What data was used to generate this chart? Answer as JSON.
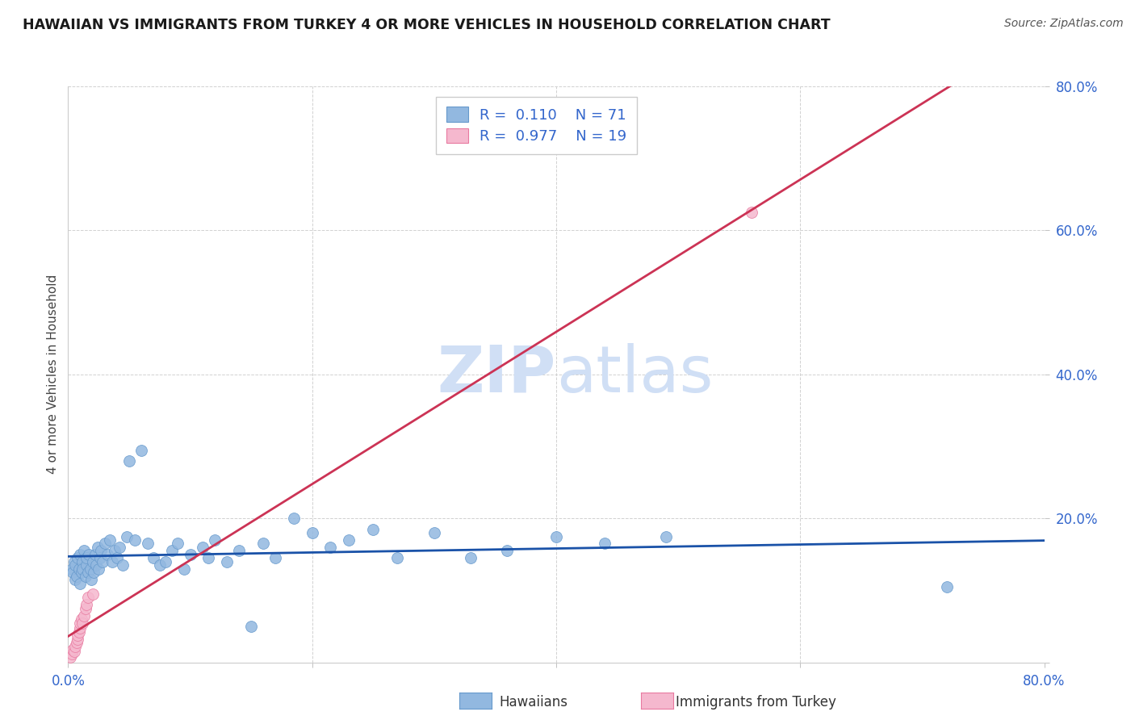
{
  "title": "HAWAIIAN VS IMMIGRANTS FROM TURKEY 4 OR MORE VEHICLES IN HOUSEHOLD CORRELATION CHART",
  "source": "Source: ZipAtlas.com",
  "ylabel": "4 or more Vehicles in Household",
  "xlim": [
    0.0,
    0.8
  ],
  "ylim": [
    0.0,
    0.8
  ],
  "xticks": [
    0.0,
    0.2,
    0.4,
    0.6,
    0.8
  ],
  "yticks": [
    0.0,
    0.2,
    0.4,
    0.6,
    0.8
  ],
  "xticklabels": [
    "0.0%",
    "",
    "",
    "",
    "80.0%"
  ],
  "yticklabels": [
    "",
    "20.0%",
    "40.0%",
    "60.0%",
    "80.0%"
  ],
  "hawaiian_R": 0.11,
  "hawaiian_N": 71,
  "turkey_R": 0.977,
  "turkey_N": 19,
  "hawaiian_color": "#92b8e0",
  "hawaiian_edge": "#6699cc",
  "turkey_color": "#f5b8ce",
  "turkey_edge": "#e87aa0",
  "trend_hawaiian_color": "#1a52a8",
  "trend_turkey_color": "#cc3355",
  "watermark_color": "#d0dff5",
  "background_color": "#ffffff",
  "grid_color": "#cccccc",
  "tick_color": "#3366cc",
  "hawaiian_x": [
    0.003,
    0.004,
    0.005,
    0.006,
    0.006,
    0.007,
    0.008,
    0.009,
    0.01,
    0.01,
    0.011,
    0.012,
    0.012,
    0.013,
    0.014,
    0.015,
    0.015,
    0.016,
    0.017,
    0.018,
    0.019,
    0.02,
    0.021,
    0.022,
    0.023,
    0.024,
    0.025,
    0.026,
    0.027,
    0.028,
    0.03,
    0.032,
    0.034,
    0.036,
    0.038,
    0.04,
    0.042,
    0.045,
    0.048,
    0.05,
    0.055,
    0.06,
    0.065,
    0.07,
    0.075,
    0.08,
    0.085,
    0.09,
    0.095,
    0.1,
    0.11,
    0.115,
    0.12,
    0.13,
    0.14,
    0.15,
    0.16,
    0.17,
    0.185,
    0.2,
    0.215,
    0.23,
    0.25,
    0.27,
    0.3,
    0.33,
    0.36,
    0.4,
    0.44,
    0.49,
    0.72
  ],
  "hawaiian_y": [
    0.13,
    0.125,
    0.14,
    0.115,
    0.135,
    0.12,
    0.145,
    0.13,
    0.15,
    0.11,
    0.125,
    0.14,
    0.13,
    0.155,
    0.12,
    0.135,
    0.145,
    0.125,
    0.15,
    0.13,
    0.115,
    0.14,
    0.125,
    0.15,
    0.135,
    0.16,
    0.13,
    0.145,
    0.155,
    0.14,
    0.165,
    0.15,
    0.17,
    0.14,
    0.155,
    0.145,
    0.16,
    0.135,
    0.175,
    0.28,
    0.17,
    0.295,
    0.165,
    0.145,
    0.135,
    0.14,
    0.155,
    0.165,
    0.13,
    0.15,
    0.16,
    0.145,
    0.17,
    0.14,
    0.155,
    0.05,
    0.165,
    0.145,
    0.2,
    0.18,
    0.16,
    0.17,
    0.185,
    0.145,
    0.18,
    0.145,
    0.155,
    0.175,
    0.165,
    0.175,
    0.105
  ],
  "turkey_x": [
    0.002,
    0.003,
    0.004,
    0.005,
    0.006,
    0.007,
    0.008,
    0.008,
    0.009,
    0.01,
    0.01,
    0.011,
    0.012,
    0.013,
    0.014,
    0.015,
    0.016,
    0.02,
    0.56
  ],
  "turkey_y": [
    0.008,
    0.012,
    0.018,
    0.015,
    0.022,
    0.028,
    0.032,
    0.038,
    0.042,
    0.048,
    0.055,
    0.06,
    0.055,
    0.065,
    0.075,
    0.08,
    0.09,
    0.095,
    0.625
  ]
}
